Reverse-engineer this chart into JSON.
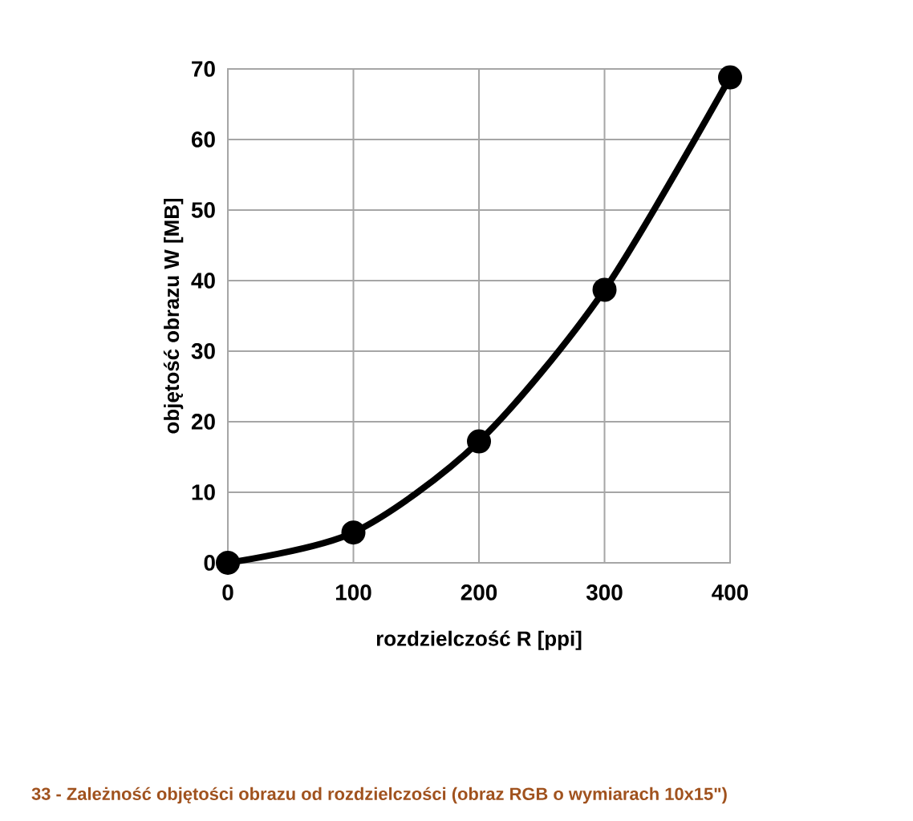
{
  "chart_data": {
    "type": "line",
    "xlabel": "rozdzielczość R [ppi]",
    "ylabel": "objętość obrazu W [MB]",
    "annotations": [
      "33 - Zależność objętości obrazu od rozdzielczości (obraz RGB o wymiarach 10x15\")"
    ],
    "x": [
      0,
      100,
      200,
      300,
      400
    ],
    "series": [
      {
        "color": "#000000",
        "values": [
          0,
          4.3,
          17.2,
          38.7,
          68.8
        ]
      }
    ],
    "xlim": [
      0,
      400
    ],
    "xticks": [
      0,
      100,
      200,
      300,
      400
    ],
    "ylim": [
      0,
      70
    ],
    "yticks": [
      0,
      10,
      20,
      30,
      40,
      50,
      60,
      70
    ],
    "grid": true,
    "marker": "circle",
    "line_style": "solid"
  }
}
